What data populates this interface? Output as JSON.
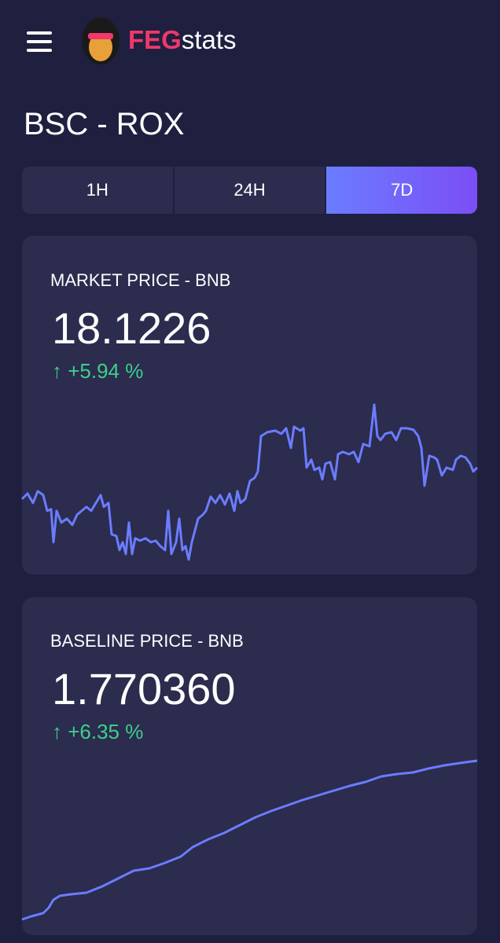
{
  "header": {
    "brand_primary": "FEG",
    "brand_secondary": "stats"
  },
  "page_title": "BSC - ROX",
  "tabs": [
    "1H",
    "24H",
    "7D"
  ],
  "cards": [
    {
      "label": "MARKET PRICE - BNB",
      "value": "18.1226",
      "change": "+5.94 %"
    },
    {
      "label": "BASELINE PRICE - BNB",
      "value": "1.770360",
      "change": "+6.35 %"
    }
  ]
}
